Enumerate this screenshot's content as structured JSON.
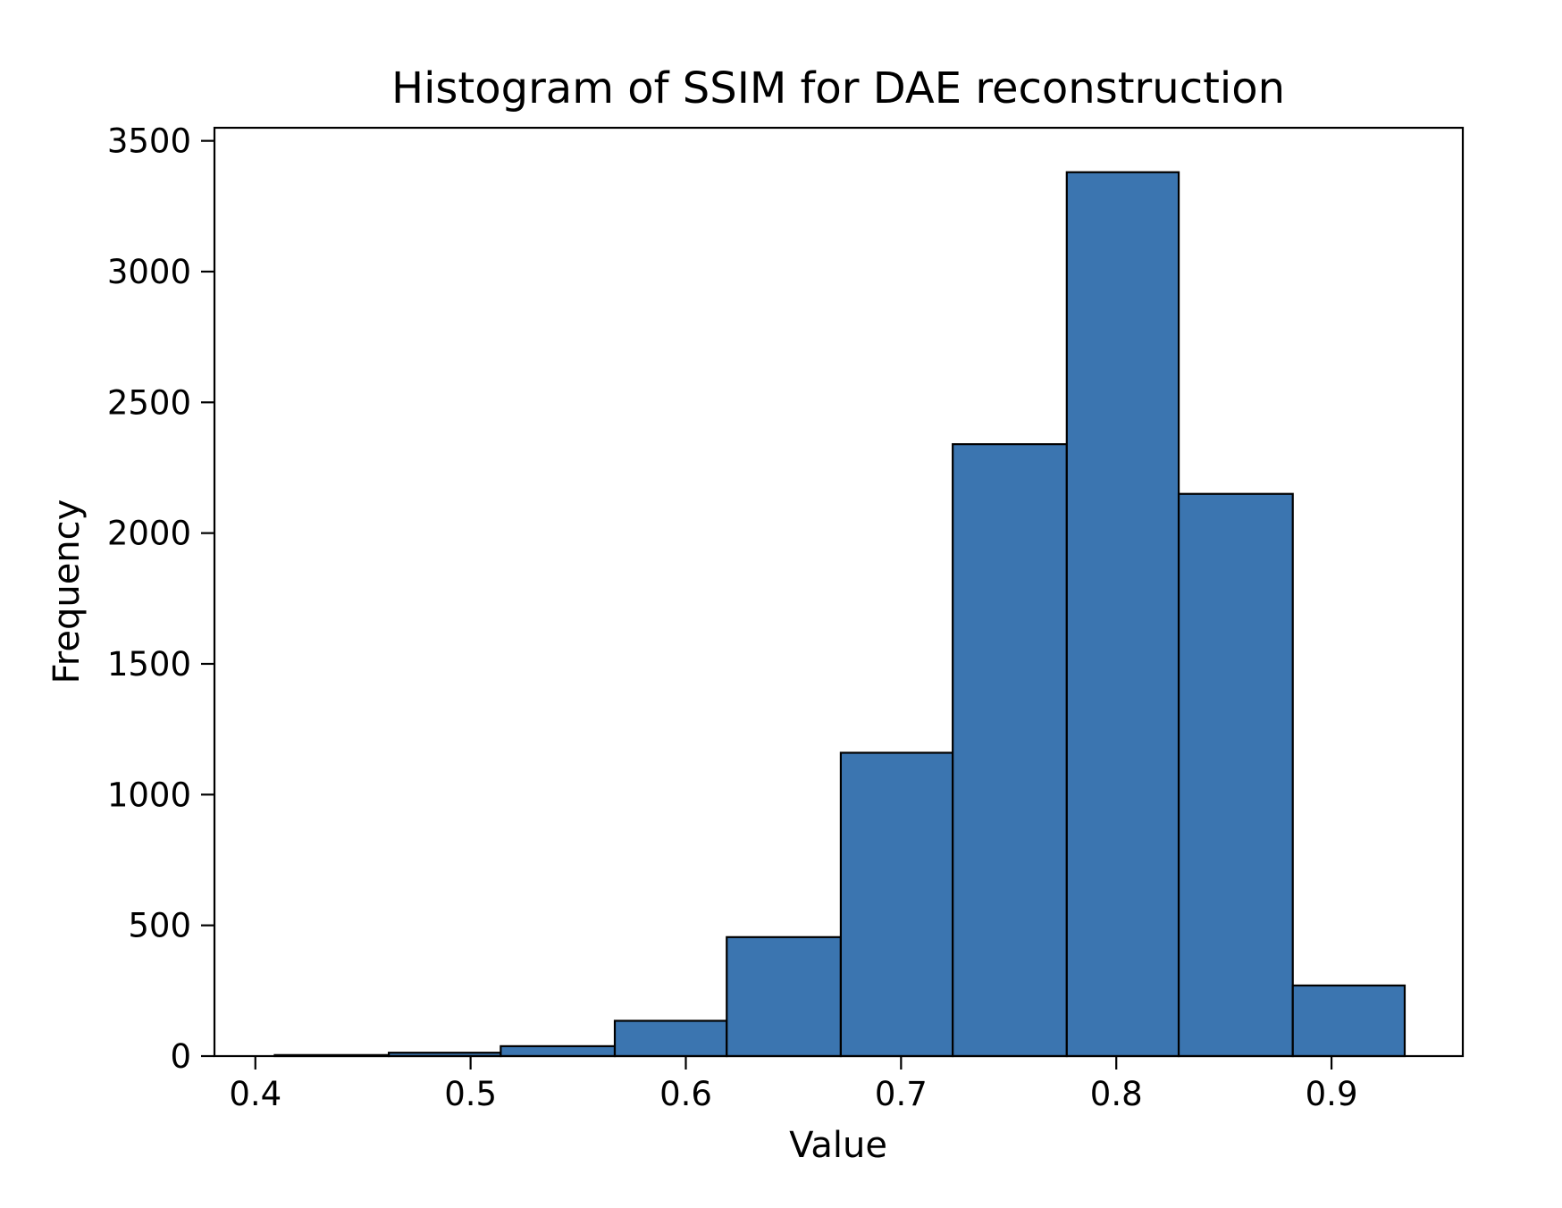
{
  "chart_data": {
    "type": "bar",
    "subtype": "histogram",
    "title": "Histogram of SSIM for DAE reconstruction",
    "xlabel": "Value",
    "ylabel": "Frequency",
    "bin_edges": [
      0.409,
      0.462,
      0.514,
      0.567,
      0.619,
      0.672,
      0.724,
      0.777,
      0.829,
      0.882,
      0.934
    ],
    "counts": [
      4,
      13,
      38,
      135,
      455,
      1160,
      2340,
      3380,
      2150,
      270
    ],
    "xticks": [
      0.4,
      0.5,
      0.6,
      0.7,
      0.8,
      0.9
    ],
    "xtick_labels": [
      "0.4",
      "0.5",
      "0.6",
      "0.7",
      "0.8",
      "0.9"
    ],
    "yticks": [
      0,
      500,
      1000,
      1500,
      2000,
      2500,
      3000,
      3500
    ],
    "ytick_labels": [
      "0",
      "500",
      "1000",
      "1500",
      "2000",
      "2500",
      "3000",
      "3500"
    ],
    "xlim": [
      0.381,
      0.961
    ],
    "ylim": [
      0,
      3550
    ],
    "grid": false,
    "legend": null,
    "bar_color": "#3b75b0",
    "bar_edge_color": "#000000",
    "axis_color": "#000000",
    "background": "#ffffff"
  }
}
